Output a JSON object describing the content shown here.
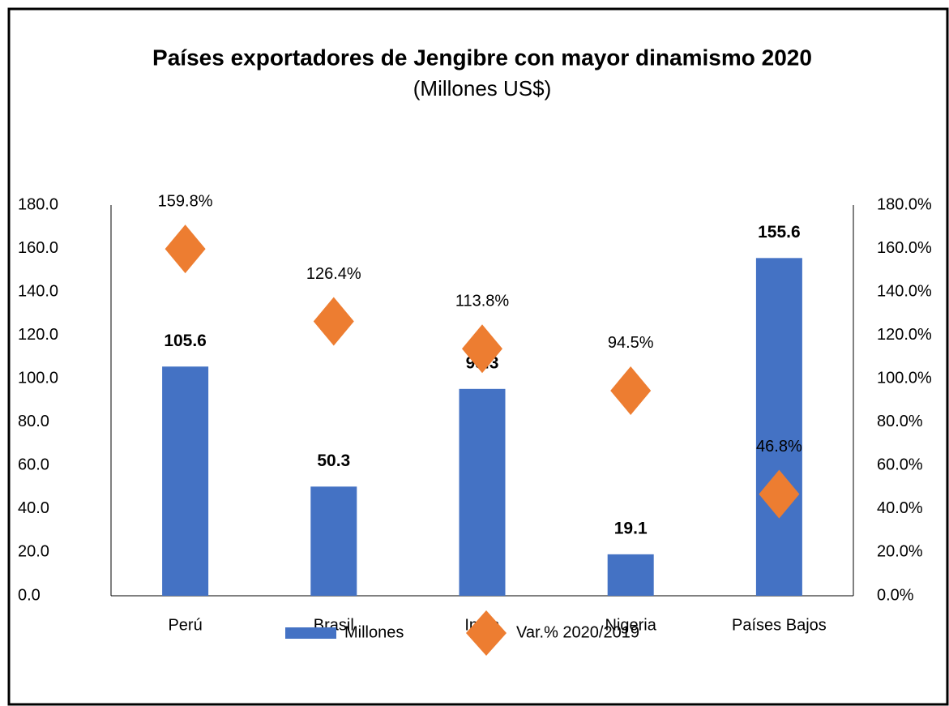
{
  "chart_data": {
    "type": "bar",
    "title": "Países exportadores de Jengibre con mayor dinamismo 2020",
    "subtitle": "(Millones US$)",
    "categories": [
      "Perú",
      "Brasil",
      "India",
      "Nigeria",
      "Países Bajos"
    ],
    "series": [
      {
        "name": "Millones",
        "color": "#4472c4",
        "values": [
          105.6,
          50.3,
          95.3,
          19.1,
          155.6
        ]
      },
      {
        "name": "Var.% 2020/2019",
        "color": "#ed7d31",
        "axis": "y2",
        "marker": "diamond",
        "values": [
          159.8,
          126.4,
          113.8,
          94.5,
          46.8
        ],
        "value_labels": [
          "159.8%",
          "126.4%",
          "113.8%",
          "94.5%",
          "46.8%"
        ]
      }
    ],
    "ylim": [
      0,
      180
    ],
    "yticks": [
      {
        "value": 0,
        "label": "0.0"
      },
      {
        "value": 20,
        "label": "20.0"
      },
      {
        "value": 40,
        "label": "40.0"
      },
      {
        "value": 60,
        "label": "60.0"
      },
      {
        "value": 80,
        "label": "80.0"
      },
      {
        "value": 100,
        "label": "100.0"
      },
      {
        "value": 120,
        "label": "120.0"
      },
      {
        "value": 140,
        "label": "140.0"
      },
      {
        "value": 160,
        "label": "160.0"
      },
      {
        "value": 180,
        "label": "180.0"
      }
    ],
    "y2lim": [
      0,
      180
    ],
    "y2ticks": [
      {
        "value": 0,
        "label": "0.0%"
      },
      {
        "value": 20,
        "label": "20.0%"
      },
      {
        "value": 40,
        "label": "40.0%"
      },
      {
        "value": 60,
        "label": "60.0%"
      },
      {
        "value": 80,
        "label": "80.0%"
      },
      {
        "value": 100,
        "label": "100.0%"
      },
      {
        "value": 120,
        "label": "120.0%"
      },
      {
        "value": 140,
        "label": "140.0%"
      },
      {
        "value": 160,
        "label": "160.0%"
      },
      {
        "value": 180,
        "label": "180.0%"
      }
    ],
    "grid": false,
    "legend": "bottom"
  }
}
